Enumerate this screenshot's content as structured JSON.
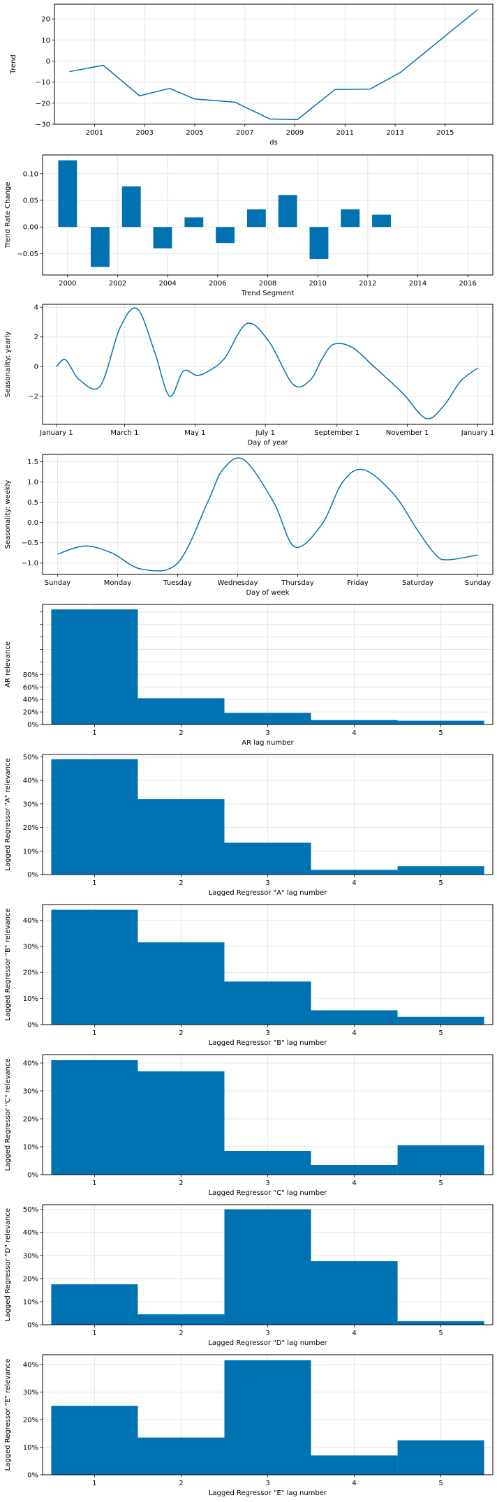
{
  "colors": {
    "series": "#0072B2",
    "grid": "#e6e6e6",
    "frame": "#000000"
  },
  "chart_data": [
    {
      "type": "line",
      "ylabel": "Trend",
      "xlabel": "ds",
      "x": [
        2000.0,
        2001.35,
        2002.8,
        2004.0,
        2005.0,
        2006.6,
        2008.0,
        2009.1,
        2010.6,
        2012.0,
        2013.2,
        2016.3
      ],
      "y": [
        -5,
        -2,
        -16.5,
        -13,
        -18,
        -19.5,
        -27.5,
        -27.8,
        -13.5,
        -13.3,
        -5.5,
        24.5
      ],
      "xlim": [
        1999.4,
        2016.9
      ],
      "ylim": [
        -30,
        27
      ],
      "xticks": [
        2001,
        2003,
        2005,
        2007,
        2009,
        2011,
        2013,
        2015
      ],
      "xtick_labels": [
        "2001",
        "2003",
        "2005",
        "2007",
        "2009",
        "2011",
        "2013",
        "2015"
      ],
      "yticks": [
        -30,
        -20,
        -10,
        0,
        10,
        20
      ],
      "ytick_labels": [
        "−30",
        "−20",
        "−10",
        "0",
        "10",
        "20"
      ],
      "grid": true
    },
    {
      "type": "bar",
      "ylabel": "Trend Rate Change",
      "xlabel": "Trend Segment",
      "x": [
        2000.0,
        2001.3,
        2002.55,
        2003.8,
        2005.05,
        2006.3,
        2007.55,
        2008.8,
        2010.05,
        2011.3,
        2012.55
      ],
      "values": [
        0.125,
        -0.075,
        0.076,
        -0.04,
        0.018,
        -0.03,
        0.033,
        0.06,
        -0.06,
        0.033,
        0.023
      ],
      "bar_width": 0.75,
      "xlim": [
        1999.0,
        2017.0
      ],
      "ylim": [
        -0.09,
        0.135
      ],
      "xticks": [
        2000,
        2002,
        2004,
        2006,
        2008,
        2010,
        2012,
        2014,
        2016
      ],
      "xtick_labels": [
        "2000",
        "2002",
        "2004",
        "2006",
        "2008",
        "2010",
        "2012",
        "2014",
        "2016"
      ],
      "yticks": [
        -0.05,
        0.0,
        0.05,
        0.1
      ],
      "ytick_labels": [
        "−0.05",
        "0.00",
        "0.05",
        "0.10"
      ],
      "grid": true
    },
    {
      "type": "line",
      "ylabel": "Seasonality: yearly",
      "xlabel": "Day of year",
      "x": [
        0,
        8,
        20,
        38,
        55,
        70,
        85,
        98,
        110,
        122,
        134,
        146,
        165,
        184,
        205,
        220,
        230,
        240,
        256,
        275,
        300,
        320,
        335,
        350,
        365
      ],
      "y": [
        0.0,
        0.45,
        -0.9,
        -1.3,
        2.6,
        3.9,
        1.0,
        -2.0,
        -0.3,
        -0.6,
        -0.2,
        0.6,
        2.9,
        1.7,
        -1.2,
        -0.9,
        0.5,
        1.5,
        1.3,
        0.0,
        -1.8,
        -3.5,
        -2.7,
        -1.0,
        -0.1
      ],
      "xlim": [
        -12,
        378
      ],
      "ylim": [
        -3.9,
        4.2
      ],
      "xticks": [
        0,
        59,
        120,
        181,
        243,
        304,
        365
      ],
      "xtick_labels": [
        "January 1",
        "March 1",
        "May 1",
        "July 1",
        "September 1",
        "November 1",
        "January 1"
      ],
      "yticks": [
        -2,
        0,
        2,
        4
      ],
      "ytick_labels": [
        "−2",
        "0",
        "2",
        "4"
      ],
      "grid": true
    },
    {
      "type": "line",
      "ylabel": "Seasonality: weekly",
      "xlabel": "Day of week",
      "x": [
        0,
        0.45,
        0.9,
        1.4,
        2.0,
        2.5,
        2.75,
        3.1,
        3.6,
        3.95,
        4.4,
        4.75,
        5.1,
        5.6,
        6.0,
        6.3,
        6.5,
        7.0
      ],
      "y": [
        -0.78,
        -0.58,
        -0.75,
        -1.15,
        -1.0,
        0.5,
        1.3,
        1.55,
        0.5,
        -0.6,
        -0.05,
        1.0,
        1.3,
        0.7,
        -0.2,
        -0.8,
        -0.92,
        -0.8
      ],
      "xlim": [
        -0.25,
        7.25
      ],
      "ylim": [
        -1.28,
        1.68
      ],
      "xticks": [
        0,
        1,
        2,
        3,
        4,
        5,
        6,
        7
      ],
      "xtick_labels": [
        "Sunday",
        "Monday",
        "Tuesday",
        "Wednesday",
        "Thursday",
        "Friday",
        "Saturday",
        "Sunday"
      ],
      "yticks": [
        -1.0,
        -0.5,
        0.0,
        0.5,
        1.0,
        1.5
      ],
      "ytick_labels": [
        "−1.0",
        "−0.5",
        "0.0",
        "0.5",
        "1.0",
        "1.5"
      ],
      "grid": true
    },
    {
      "type": "bar",
      "ylabel": "AR relevance",
      "xlabel": "AR lag number",
      "categories": [
        1,
        2,
        3,
        4,
        5
      ],
      "values": [
        184,
        42,
        18.5,
        7,
        6
      ],
      "bar_width": 1.0,
      "xlim": [
        0.4,
        5.6
      ],
      "ylim": [
        0,
        192
      ],
      "xticks": [
        1,
        2,
        3,
        4,
        5
      ],
      "xtick_labels": [
        "1",
        "2",
        "3",
        "4",
        "5"
      ],
      "yticks": [
        0,
        20,
        40,
        60,
        80,
        100,
        120,
        140,
        160,
        180
      ],
      "ytick_labels": [
        "0%",
        "20%",
        "40%",
        "60%",
        "80%",
        "",
        "",
        "",
        "",
        ""
      ],
      "grid": true
    },
    {
      "type": "bar",
      "ylabel": "Lagged Regressor \"A\" relevance",
      "xlabel": "Lagged Regressor \"A\" lag number",
      "categories": [
        1,
        2,
        3,
        4,
        5
      ],
      "values": [
        49,
        32,
        13.5,
        2,
        3.5
      ],
      "bar_width": 1.0,
      "xlim": [
        0.4,
        5.6
      ],
      "ylim": [
        0,
        51
      ],
      "xticks": [
        1,
        2,
        3,
        4,
        5
      ],
      "xtick_labels": [
        "1",
        "2",
        "3",
        "4",
        "5"
      ],
      "yticks": [
        0,
        10,
        20,
        30,
        40,
        50
      ],
      "ytick_labels": [
        "0%",
        "10%",
        "20%",
        "30%",
        "40%",
        "50%"
      ],
      "grid": true
    },
    {
      "type": "bar",
      "ylabel": "Lagged Regressor \"B\" relevance",
      "xlabel": "Lagged Regressor \"B\" lag number",
      "categories": [
        1,
        2,
        3,
        4,
        5
      ],
      "values": [
        44,
        31.5,
        16.5,
        5.5,
        3
      ],
      "bar_width": 1.0,
      "xlim": [
        0.4,
        5.6
      ],
      "ylim": [
        0,
        46
      ],
      "xticks": [
        1,
        2,
        3,
        4,
        5
      ],
      "xtick_labels": [
        "1",
        "2",
        "3",
        "4",
        "5"
      ],
      "yticks": [
        0,
        10,
        20,
        30,
        40
      ],
      "ytick_labels": [
        "0%",
        "10%",
        "20%",
        "30%",
        "40%"
      ],
      "grid": true
    },
    {
      "type": "bar",
      "ylabel": "Lagged Regressor \"C\" relevance",
      "xlabel": "Lagged Regressor \"C\" lag number",
      "categories": [
        1,
        2,
        3,
        4,
        5
      ],
      "values": [
        41,
        37,
        8.5,
        3.5,
        10.5
      ],
      "bar_width": 1.0,
      "xlim": [
        0.4,
        5.6
      ],
      "ylim": [
        0,
        43
      ],
      "xticks": [
        1,
        2,
        3,
        4,
        5
      ],
      "xtick_labels": [
        "1",
        "2",
        "3",
        "4",
        "5"
      ],
      "yticks": [
        0,
        10,
        20,
        30,
        40
      ],
      "ytick_labels": [
        "0%",
        "10%",
        "20%",
        "30%",
        "40%"
      ],
      "grid": true
    },
    {
      "type": "bar",
      "ylabel": "Lagged Regressor \"D\" relevance",
      "xlabel": "Lagged Regressor \"D\" lag number",
      "categories": [
        1,
        2,
        3,
        4,
        5
      ],
      "values": [
        17.5,
        4.5,
        50,
        27.5,
        1.5
      ],
      "bar_width": 1.0,
      "xlim": [
        0.4,
        5.6
      ],
      "ylim": [
        0,
        52
      ],
      "xticks": [
        1,
        2,
        3,
        4,
        5
      ],
      "xtick_labels": [
        "1",
        "2",
        "3",
        "4",
        "5"
      ],
      "yticks": [
        0,
        10,
        20,
        30,
        40,
        50
      ],
      "ytick_labels": [
        "0%",
        "10%",
        "20%",
        "30%",
        "40%",
        "50%"
      ],
      "grid": true
    },
    {
      "type": "bar",
      "ylabel": "Lagged Regressor \"E\" relevance",
      "xlabel": "Lagged Regressor \"E\" lag number",
      "categories": [
        1,
        2,
        3,
        4,
        5
      ],
      "values": [
        25,
        13.5,
        41.5,
        7,
        12.5
      ],
      "bar_width": 1.0,
      "xlim": [
        0.4,
        5.6
      ],
      "ylim": [
        0,
        43.5
      ],
      "xticks": [
        1,
        2,
        3,
        4,
        5
      ],
      "xtick_labels": [
        "1",
        "2",
        "3",
        "4",
        "5"
      ],
      "yticks": [
        0,
        10,
        20,
        30,
        40
      ],
      "ytick_labels": [
        "0%",
        "10%",
        "20%",
        "30%",
        "40%"
      ],
      "grid": true
    }
  ]
}
